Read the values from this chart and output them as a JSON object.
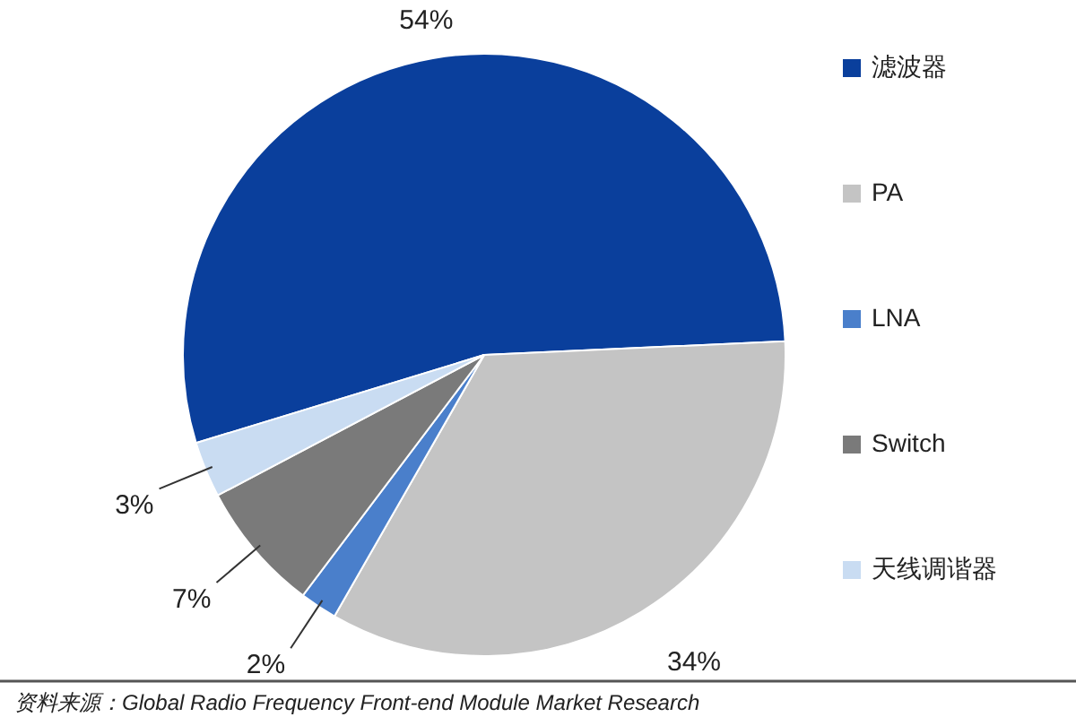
{
  "chart_data": {
    "type": "pie",
    "categories": [
      "滤波器",
      "PA",
      "LNA",
      "Switch",
      "天线调谐器"
    ],
    "values": [
      54,
      34,
      2,
      7,
      3
    ],
    "colors": [
      "#0a3f9c",
      "#c4c4c4",
      "#4a7fcb",
      "#7a7a7a",
      "#c9dcf2"
    ],
    "value_labels": [
      "54%",
      "34%",
      "2%",
      "7%",
      "3%"
    ],
    "legend": "right",
    "annotations": [
      "资料来源：Global Radio Frequency Front-end Module Market Research"
    ]
  }
}
